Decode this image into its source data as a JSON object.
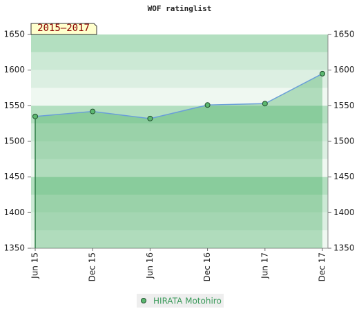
{
  "chart_data": {
    "type": "line",
    "title": "WOF ratinglist",
    "subtitle": "2015–2017",
    "categories": [
      "Jun 15",
      "Dec 15",
      "Jun 16",
      "Dec 16",
      "Jun 17",
      "Dec 17"
    ],
    "series": [
      {
        "name": "HIRATA Motohiro",
        "color": "#6a9fd8",
        "values": [
          1535,
          1542,
          1532,
          1551,
          1553,
          1595
        ]
      }
    ],
    "ylim": [
      1350,
      1650
    ],
    "yticks": [
      1350,
      1400,
      1450,
      1500,
      1550,
      1600,
      1650
    ],
    "y2lim": [
      1350,
      1650
    ],
    "y2ticks": [
      1350,
      1400,
      1450,
      1500,
      1550,
      1600,
      1650
    ],
    "area": true,
    "legend": "bottom"
  }
}
